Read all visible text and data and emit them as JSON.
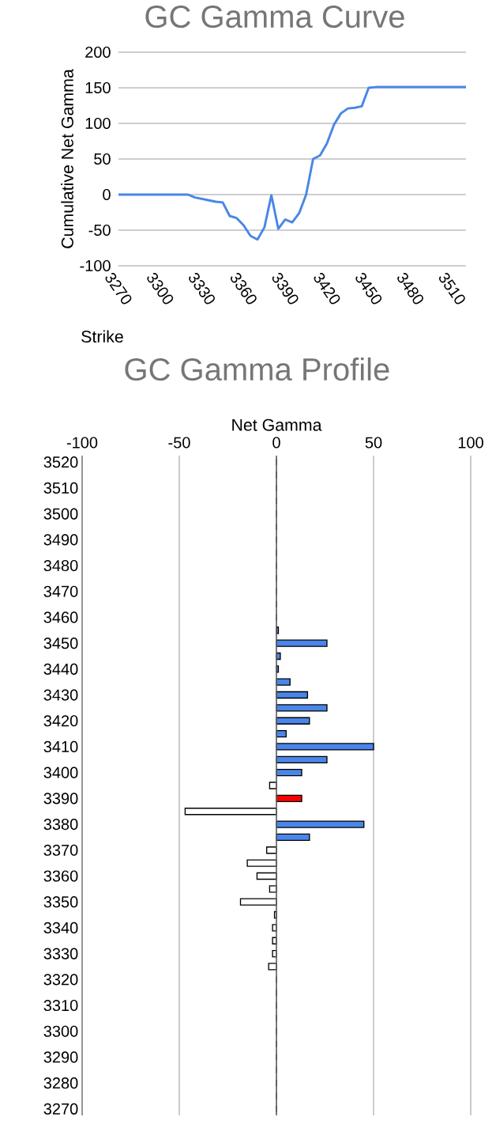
{
  "chart_data": [
    {
      "type": "line",
      "title": "GC Gamma Curve",
      "xlabel": "Strike",
      "ylabel": "Cumulative Net Gamma",
      "x": [
        3270,
        3275,
        3280,
        3285,
        3290,
        3295,
        3300,
        3305,
        3310,
        3315,
        3320,
        3325,
        3330,
        3335,
        3340,
        3345,
        3350,
        3355,
        3360,
        3365,
        3370,
        3375,
        3380,
        3385,
        3390,
        3395,
        3400,
        3405,
        3410,
        3415,
        3420,
        3425,
        3430,
        3435,
        3440,
        3445,
        3450,
        3455,
        3460,
        3465,
        3470,
        3475,
        3480,
        3485,
        3490,
        3495,
        3500,
        3505,
        3510,
        3515,
        3520
      ],
      "series": [
        {
          "color": "#4a86e8",
          "values": [
            0,
            0,
            0,
            0,
            0,
            0,
            0,
            0,
            0,
            0,
            0,
            -4,
            -6,
            -8,
            -10,
            -11,
            -30,
            -33,
            -43,
            -58,
            -63,
            -46,
            -1,
            -48,
            -35,
            -39,
            -26,
            0,
            50,
            55,
            72,
            98,
            114,
            121,
            122,
            124,
            150,
            151,
            151,
            151,
            151,
            151,
            151,
            151,
            151,
            151,
            151,
            151,
            151,
            151,
            151
          ]
        }
      ],
      "xlim": [
        3270,
        3520
      ],
      "xticks": [
        3270,
        3300,
        3330,
        3360,
        3390,
        3420,
        3450,
        3480,
        3510
      ],
      "ylim": [
        -100,
        200
      ],
      "yticks": [
        -100,
        -50,
        0,
        50,
        100,
        150,
        200
      ],
      "grid": "y"
    },
    {
      "type": "bar",
      "orientation": "horizontal",
      "title": "GC Gamma Profile",
      "xlabel": "Net Gamma",
      "categories": [
        "3520",
        null,
        "3510",
        null,
        "3500",
        null,
        "3490",
        null,
        "3480",
        null,
        "3470",
        null,
        "3460",
        null,
        "3450",
        null,
        "3440",
        null,
        "3430",
        null,
        "3420",
        null,
        "3410",
        null,
        "3400",
        null,
        "3390",
        null,
        "3380",
        null,
        "3370",
        null,
        "3360",
        null,
        "3350",
        null,
        "3340",
        null,
        "3330",
        null,
        "3320",
        null,
        "3310",
        null,
        "3300",
        null,
        "3290",
        null,
        "3280",
        null,
        "3270"
      ],
      "values": [
        0,
        0,
        0,
        0,
        0,
        0,
        0,
        0,
        0,
        0,
        0,
        0,
        0,
        1,
        26,
        2,
        1,
        7,
        16,
        26,
        17,
        5,
        50,
        26,
        13,
        -3.5,
        13,
        -47,
        45,
        17,
        -5,
        -15,
        -10,
        -3.5,
        -18.5,
        -1,
        -2,
        -2,
        -2,
        -4,
        0,
        0,
        0,
        0,
        0,
        0,
        0,
        0,
        0,
        0,
        0
      ],
      "colors": [
        "#ffffff",
        "#ffffff",
        "#ffffff",
        "#ffffff",
        "#ffffff",
        "#ffffff",
        "#ffffff",
        "#ffffff",
        "#ffffff",
        "#ffffff",
        "#ffffff",
        "#ffffff",
        "#ffffff",
        "#4a86e8",
        "#4a86e8",
        "#4a86e8",
        "#4a86e8",
        "#4a86e8",
        "#4a86e8",
        "#4a86e8",
        "#4a86e8",
        "#4a86e8",
        "#4a86e8",
        "#4a86e8",
        "#4a86e8",
        "#ffffff",
        "#ff0000",
        "#ffffff",
        "#4a86e8",
        "#4a86e8",
        "#ffffff",
        "#ffffff",
        "#ffffff",
        "#ffffff",
        "#ffffff",
        "#ffffff",
        "#ffffff",
        "#ffffff",
        "#ffffff",
        "#ffffff",
        "#ffffff",
        "#ffffff",
        "#ffffff",
        "#ffffff",
        "#ffffff",
        "#ffffff",
        "#ffffff",
        "#ffffff",
        "#ffffff",
        "#ffffff",
        "#ffffff"
      ],
      "xlim": [
        -100,
        100
      ],
      "xticks": [
        -100,
        -50,
        0,
        50,
        100
      ],
      "grid": "x"
    }
  ]
}
